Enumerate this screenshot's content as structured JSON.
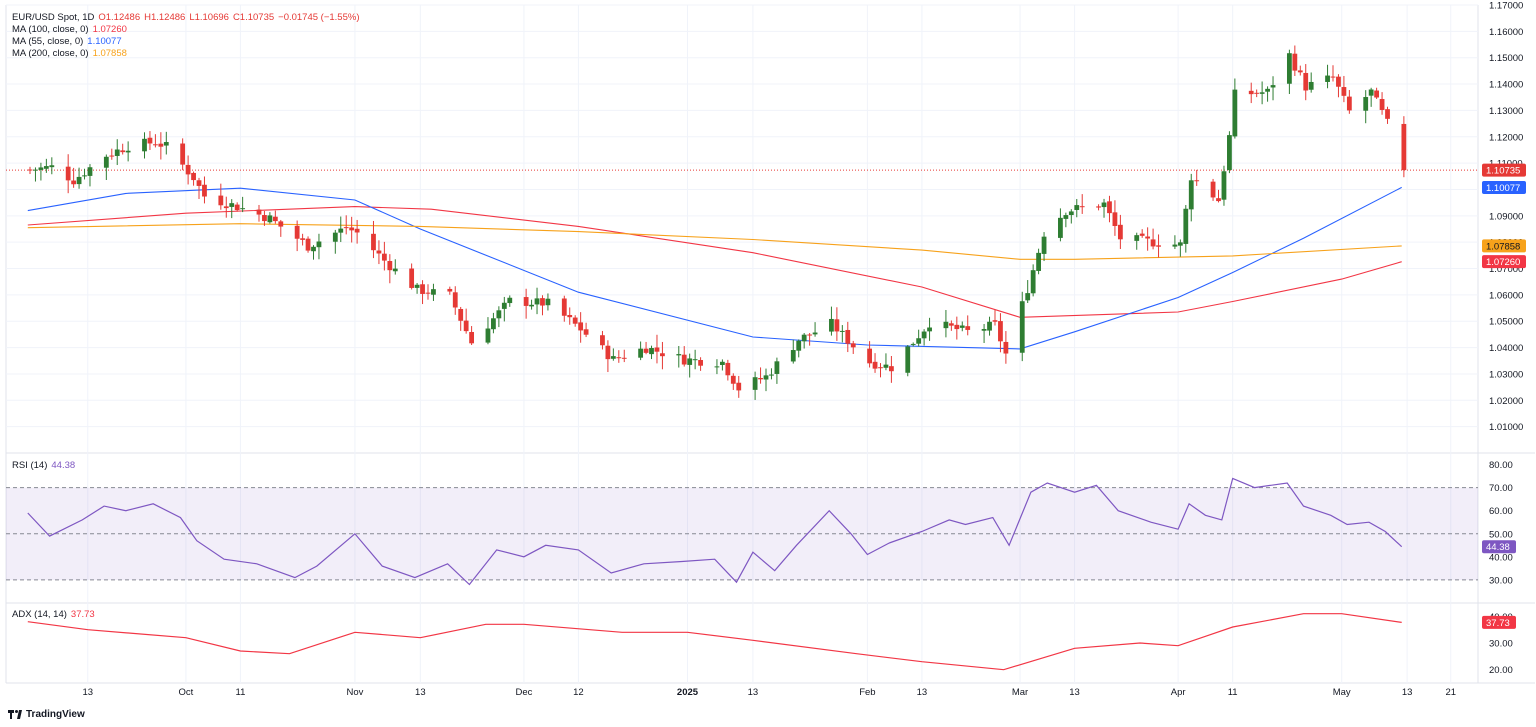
{
  "header": {
    "symbol": "EUR/USD Spot, 1D",
    "open": "O1.12486",
    "high": "H1.12486",
    "low": "L1.10696",
    "close": "C1.10735",
    "change": "−0.01745 (−1.55%)",
    "ma100_label": "MA (100, close, 0)",
    "ma100_value": "1.07260",
    "ma55_label": "MA (55, close, 0)",
    "ma55_value": "1.10077",
    "ma200_label": "MA (200, close, 0)",
    "ma200_value": "1.07858",
    "rsi_label": "RSI (14)",
    "rsi_value": "44.38",
    "adx_label": "ADX (14, 14)",
    "adx_value": "37.73",
    "brand": "TradingView"
  },
  "colors": {
    "up": "#26a69a",
    "up_fill": "#2e7d32",
    "down": "#e53935",
    "ma100": "#f23645",
    "ma55": "#2962ff",
    "ma200": "#f7a21b",
    "rsi": "#7e57c2",
    "adx": "#f23645"
  },
  "chart_data": [
    {
      "type": "candlestick",
      "title": "EUR/USD Spot, 1D",
      "ylim": [
        1.0,
        1.17
      ],
      "y_ticks": [
        "1.17000",
        "1.16000",
        "1.15000",
        "1.14000",
        "1.13000",
        "1.12000",
        "1.11000",
        "1.10000",
        "1.09000",
        "1.08000",
        "1.07000",
        "1.06000",
        "1.05000",
        "1.04000",
        "1.03000",
        "1.02000",
        "1.01000"
      ],
      "x_ticks": [
        {
          "label": "13",
          "date": "2024-09-13"
        },
        {
          "label": "Oct",
          "date": "2024-10-01"
        },
        {
          "label": "11",
          "date": "2024-10-11"
        },
        {
          "label": "Nov",
          "date": "2024-11-01"
        },
        {
          "label": "13",
          "date": "2024-11-13"
        },
        {
          "label": "Dec",
          "date": "2024-12-02"
        },
        {
          "label": "12",
          "date": "2024-12-12"
        },
        {
          "label": "2025",
          "date": "2025-01-01",
          "bold": true
        },
        {
          "label": "13",
          "date": "2025-01-13"
        },
        {
          "label": "Feb",
          "date": "2025-02-03"
        },
        {
          "label": "13",
          "date": "2025-02-13"
        },
        {
          "label": "Mar",
          "date": "2025-03-03"
        },
        {
          "label": "13",
          "date": "2025-03-13"
        },
        {
          "label": "Apr",
          "date": "2025-04-01"
        },
        {
          "label": "11",
          "date": "2025-04-11"
        },
        {
          "label": "May",
          "date": "2025-05-01"
        },
        {
          "label": "13",
          "date": "2025-05-13"
        },
        {
          "label": "21",
          "date": "2025-05-21"
        }
      ],
      "last_price": 1.10735,
      "last_price_label": "1.10735",
      "closes": [
        {
          "date": "2024-09-02",
          "close": 1.1075
        },
        {
          "date": "2024-09-06",
          "close": 1.1085
        },
        {
          "date": "2024-09-10",
          "close": 1.1035
        },
        {
          "date": "2024-09-16",
          "close": 1.113
        },
        {
          "date": "2024-09-20",
          "close": 1.1165
        },
        {
          "date": "2024-09-25",
          "close": 1.118
        },
        {
          "date": "2024-09-27",
          "close": 1.1163
        },
        {
          "date": "2024-10-02",
          "close": 1.1045
        },
        {
          "date": "2024-10-04",
          "close": 1.0975
        },
        {
          "date": "2024-10-10",
          "close": 1.0935
        },
        {
          "date": "2024-10-16",
          "close": 1.089
        },
        {
          "date": "2024-10-23",
          "close": 1.0785
        },
        {
          "date": "2024-10-30",
          "close": 1.0855
        },
        {
          "date": "2024-11-01",
          "close": 1.0835
        },
        {
          "date": "2024-11-06",
          "close": 1.073
        },
        {
          "date": "2024-11-12",
          "close": 1.062
        },
        {
          "date": "2024-11-18",
          "close": 1.0597
        },
        {
          "date": "2024-11-22",
          "close": 1.042
        },
        {
          "date": "2024-11-29",
          "close": 1.0577
        },
        {
          "date": "2024-12-06",
          "close": 1.0567
        },
        {
          "date": "2024-12-12",
          "close": 1.047
        },
        {
          "date": "2024-12-18",
          "close": 1.0355
        },
        {
          "date": "2024-12-24",
          "close": 1.04
        },
        {
          "date": "2024-12-31",
          "close": 1.0355
        },
        {
          "date": "2025-01-07",
          "close": 1.0345
        },
        {
          "date": "2025-01-10",
          "close": 1.0245
        },
        {
          "date": "2025-01-15",
          "close": 1.029
        },
        {
          "date": "2025-01-21",
          "close": 1.043
        },
        {
          "date": "2025-01-27",
          "close": 1.049
        },
        {
          "date": "2025-02-03",
          "close": 1.0345
        },
        {
          "date": "2025-02-07",
          "close": 1.0325
        },
        {
          "date": "2025-02-14",
          "close": 1.0495
        },
        {
          "date": "2025-02-21",
          "close": 1.046
        },
        {
          "date": "2025-02-26",
          "close": 1.0485
        },
        {
          "date": "2025-02-28",
          "close": 1.0375
        },
        {
          "date": "2025-03-04",
          "close": 1.0625
        },
        {
          "date": "2025-03-07",
          "close": 1.0835
        },
        {
          "date": "2025-03-11",
          "close": 1.092
        },
        {
          "date": "2025-03-18",
          "close": 1.0945
        },
        {
          "date": "2025-03-21",
          "close": 1.0815
        },
        {
          "date": "2025-03-27",
          "close": 1.08
        },
        {
          "date": "2025-04-01",
          "close": 1.079
        },
        {
          "date": "2025-04-03",
          "close": 1.105
        },
        {
          "date": "2025-04-08",
          "close": 1.096
        },
        {
          "date": "2025-04-10",
          "close": 1.12
        },
        {
          "date": "2025-04-11",
          "close": 1.136
        },
        {
          "date": "2025-04-17",
          "close": 1.137
        },
        {
          "date": "2025-04-21",
          "close": 1.151
        },
        {
          "date": "2025-04-24",
          "close": 1.139
        },
        {
          "date": "2025-04-29",
          "close": 1.1425
        },
        {
          "date": "2025-05-02",
          "close": 1.1295
        },
        {
          "date": "2025-05-06",
          "close": 1.137
        },
        {
          "date": "2025-05-09",
          "close": 1.125
        },
        {
          "date": "2025-05-12",
          "close": 1.1074
        }
      ],
      "series": [
        {
          "name": "MA (100, close, 0)",
          "current": 1.0726,
          "points": [
            {
              "date": "2024-09-02",
              "value": 1.0865
            },
            {
              "date": "2024-10-01",
              "value": 1.091
            },
            {
              "date": "2024-11-01",
              "value": 1.0935
            },
            {
              "date": "2024-11-15",
              "value": 1.0925
            },
            {
              "date": "2024-12-12",
              "value": 1.086
            },
            {
              "date": "2025-01-13",
              "value": 1.076
            },
            {
              "date": "2025-02-13",
              "value": 1.063
            },
            {
              "date": "2025-03-03",
              "value": 1.0515
            },
            {
              "date": "2025-04-01",
              "value": 1.0535
            },
            {
              "date": "2025-04-11",
              "value": 1.0575
            },
            {
              "date": "2025-05-01",
              "value": 1.066
            },
            {
              "date": "2025-05-12",
              "value": 1.0726
            }
          ]
        },
        {
          "name": "MA (55, close, 0)",
          "current": 1.10077,
          "points": [
            {
              "date": "2024-09-02",
              "value": 1.092
            },
            {
              "date": "2024-09-20",
              "value": 1.0985
            },
            {
              "date": "2024-10-11",
              "value": 1.1005
            },
            {
              "date": "2024-11-01",
              "value": 1.096
            },
            {
              "date": "2024-11-13",
              "value": 1.085
            },
            {
              "date": "2024-12-12",
              "value": 1.061
            },
            {
              "date": "2025-01-13",
              "value": 1.044
            },
            {
              "date": "2025-02-03",
              "value": 1.041
            },
            {
              "date": "2025-03-03",
              "value": 1.0395
            },
            {
              "date": "2025-03-13",
              "value": 1.046
            },
            {
              "date": "2025-04-01",
              "value": 1.059
            },
            {
              "date": "2025-04-11",
              "value": 1.0685
            },
            {
              "date": "2025-04-24",
              "value": 1.0815
            },
            {
              "date": "2025-05-12",
              "value": 1.10077
            }
          ]
        },
        {
          "name": "MA (200, close, 0)",
          "current": 1.07858,
          "points": [
            {
              "date": "2024-09-02",
              "value": 1.0855
            },
            {
              "date": "2024-10-11",
              "value": 1.087
            },
            {
              "date": "2024-11-13",
              "value": 1.086
            },
            {
              "date": "2024-12-12",
              "value": 1.084
            },
            {
              "date": "2025-01-13",
              "value": 1.081
            },
            {
              "date": "2025-02-13",
              "value": 1.077
            },
            {
              "date": "2025-03-03",
              "value": 1.0735
            },
            {
              "date": "2025-03-13",
              "value": 1.0735
            },
            {
              "date": "2025-04-11",
              "value": 1.0748
            },
            {
              "date": "2025-05-12",
              "value": 1.07858
            }
          ]
        }
      ]
    },
    {
      "type": "line",
      "title": "RSI (14)",
      "ylim": [
        20,
        85
      ],
      "y_ticks": [
        "80.00",
        "70.00",
        "60.00",
        "50.00",
        "40.00",
        "30.00"
      ],
      "bands": {
        "upper": 70,
        "middle": 50,
        "lower": 30
      },
      "series": [
        {
          "name": "RSI (14)",
          "current": 44.38,
          "points": [
            {
              "date": "2024-09-02",
              "value": 59
            },
            {
              "date": "2024-09-06",
              "value": 49
            },
            {
              "date": "2024-09-12",
              "value": 56
            },
            {
              "date": "2024-09-16",
              "value": 62
            },
            {
              "date": "2024-09-20",
              "value": 60
            },
            {
              "date": "2024-09-25",
              "value": 63
            },
            {
              "date": "2024-09-30",
              "value": 57
            },
            {
              "date": "2024-10-03",
              "value": 47
            },
            {
              "date": "2024-10-08",
              "value": 39
            },
            {
              "date": "2024-10-14",
              "value": 37
            },
            {
              "date": "2024-10-21",
              "value": 31
            },
            {
              "date": "2024-10-25",
              "value": 36
            },
            {
              "date": "2024-11-01",
              "value": 50
            },
            {
              "date": "2024-11-06",
              "value": 36
            },
            {
              "date": "2024-11-12",
              "value": 31
            },
            {
              "date": "2024-11-18",
              "value": 37
            },
            {
              "date": "2024-11-22",
              "value": 28
            },
            {
              "date": "2024-11-27",
              "value": 43
            },
            {
              "date": "2024-12-02",
              "value": 40
            },
            {
              "date": "2024-12-06",
              "value": 45
            },
            {
              "date": "2024-12-12",
              "value": 43
            },
            {
              "date": "2024-12-18",
              "value": 33
            },
            {
              "date": "2024-12-24",
              "value": 37
            },
            {
              "date": "2024-12-31",
              "value": 38
            },
            {
              "date": "2025-01-06",
              "value": 39
            },
            {
              "date": "2025-01-10",
              "value": 29
            },
            {
              "date": "2025-01-13",
              "value": 42
            },
            {
              "date": "2025-01-17",
              "value": 34
            },
            {
              "date": "2025-01-21",
              "value": 45
            },
            {
              "date": "2025-01-27",
              "value": 60
            },
            {
              "date": "2025-01-31",
              "value": 50
            },
            {
              "date": "2025-02-03",
              "value": 41
            },
            {
              "date": "2025-02-07",
              "value": 46
            },
            {
              "date": "2025-02-13",
              "value": 51
            },
            {
              "date": "2025-02-18",
              "value": 56
            },
            {
              "date": "2025-02-21",
              "value": 54
            },
            {
              "date": "2025-02-26",
              "value": 57
            },
            {
              "date": "2025-03-01",
              "value": 45
            },
            {
              "date": "2025-03-05",
              "value": 68
            },
            {
              "date": "2025-03-08",
              "value": 72
            },
            {
              "date": "2025-03-13",
              "value": 68
            },
            {
              "date": "2025-03-17",
              "value": 71
            },
            {
              "date": "2025-03-21",
              "value": 60
            },
            {
              "date": "2025-03-27",
              "value": 55
            },
            {
              "date": "2025-04-01",
              "value": 52
            },
            {
              "date": "2025-04-03",
              "value": 63
            },
            {
              "date": "2025-04-06",
              "value": 58
            },
            {
              "date": "2025-04-09",
              "value": 56
            },
            {
              "date": "2025-04-11",
              "value": 74
            },
            {
              "date": "2025-04-15",
              "value": 70
            },
            {
              "date": "2025-04-21",
              "value": 72
            },
            {
              "date": "2025-04-24",
              "value": 62
            },
            {
              "date": "2025-04-29",
              "value": 58
            },
            {
              "date": "2025-05-02",
              "value": 54
            },
            {
              "date": "2025-05-06",
              "value": 55
            },
            {
              "date": "2025-05-09",
              "value": 51
            },
            {
              "date": "2025-05-12",
              "value": 44.38
            }
          ]
        }
      ]
    },
    {
      "type": "line",
      "title": "ADX (14, 14)",
      "ylim": [
        15,
        45
      ],
      "y_ticks": [
        "40.00",
        "30.00",
        "20.00"
      ],
      "series": [
        {
          "name": "ADX (14, 14)",
          "current": 37.73,
          "points": [
            {
              "date": "2024-09-02",
              "value": 38
            },
            {
              "date": "2024-09-13",
              "value": 35
            },
            {
              "date": "2024-10-01",
              "value": 32
            },
            {
              "date": "2024-10-11",
              "value": 27
            },
            {
              "date": "2024-10-20",
              "value": 26
            },
            {
              "date": "2024-11-01",
              "value": 34
            },
            {
              "date": "2024-11-13",
              "value": 32
            },
            {
              "date": "2024-11-25",
              "value": 37
            },
            {
              "date": "2024-12-02",
              "value": 37
            },
            {
              "date": "2024-12-20",
              "value": 34
            },
            {
              "date": "2025-01-01",
              "value": 34
            },
            {
              "date": "2025-01-13",
              "value": 31
            },
            {
              "date": "2025-02-01",
              "value": 26
            },
            {
              "date": "2025-02-13",
              "value": 23
            },
            {
              "date": "2025-02-28",
              "value": 20
            },
            {
              "date": "2025-03-13",
              "value": 28
            },
            {
              "date": "2025-03-25",
              "value": 30
            },
            {
              "date": "2025-04-01",
              "value": 29
            },
            {
              "date": "2025-04-11",
              "value": 36
            },
            {
              "date": "2025-04-24",
              "value": 41
            },
            {
              "date": "2025-05-01",
              "value": 41
            },
            {
              "date": "2025-05-12",
              "value": 37.73
            }
          ]
        }
      ]
    }
  ]
}
